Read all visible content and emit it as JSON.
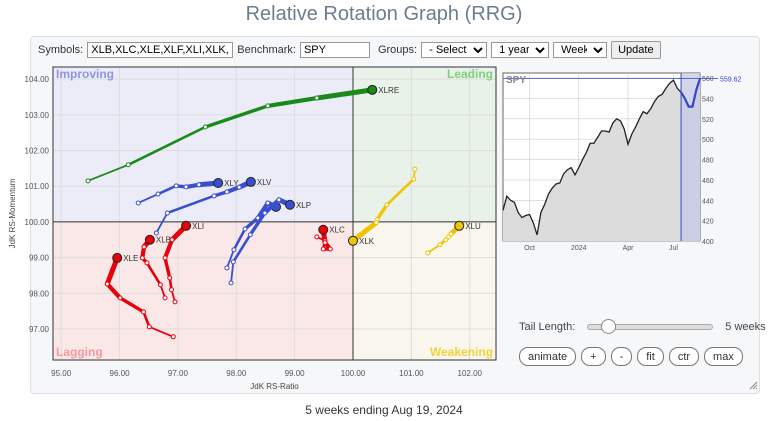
{
  "title": "Relative Rotation Graph (RRG)",
  "toolbar": {
    "symbols_label": "Symbols:",
    "symbols_value": "XLB,XLC,XLE,XLF,XLI,XLK,XLP,XLRE,XLU,XLV,XLY",
    "benchmark_label": "Benchmark:",
    "benchmark_value": "SPY",
    "groups_label": "Groups:",
    "groups_value": "- Select -",
    "period_value": "1 year",
    "interval_value": "Weekly",
    "update_label": "Update"
  },
  "controls": {
    "tail_length_label": "Tail Length:",
    "tail_length_value": "5 weeks",
    "tail_length_fraction": 0.12,
    "buttons": [
      "animate",
      "+",
      "-",
      "fit",
      "ctr",
      "max"
    ]
  },
  "footer": "5 weeks ending Aug 19, 2024",
  "chart_data": [
    {
      "type": "scatter",
      "xlabel": "JdK RS-Ratio",
      "ylabel": "JdK RS-Momentum",
      "xlim": [
        94.86,
        102.45
      ],
      "ylim": [
        96.13,
        104.34
      ],
      "xticks": [
        "95.00",
        "96.00",
        "97.00",
        "98.00",
        "99.00",
        "100.00",
        "101.00",
        "102.00"
      ],
      "yticks": [
        "97.00",
        "98.00",
        "99.00",
        "100.00",
        "101.00",
        "102.00",
        "103.00",
        "104.00"
      ],
      "grid": true,
      "quadrants": {
        "top_left": {
          "label": "Improving",
          "color": "#8e95e6",
          "bg": "#ececf8"
        },
        "top_right": {
          "label": "Leading",
          "color": "#7fcf7f",
          "bg": "#e8f2e8"
        },
        "bottom_left": {
          "label": "Lagging",
          "color": "#f39aa0",
          "bg": "#fae8e8"
        },
        "bottom_right": {
          "label": "Weakening",
          "color": "#f2d23c",
          "bg": "#f9f6ed"
        }
      },
      "series": [
        {
          "name": "XLRE",
          "color": "#1a8a1a",
          "points": [
            [
              95.46,
              101.15
            ],
            [
              96.15,
              101.6
            ],
            [
              97.47,
              102.66
            ],
            [
              98.54,
              103.25
            ],
            [
              99.38,
              103.47
            ],
            [
              100.33,
              103.7
            ]
          ]
        },
        {
          "name": "XLY",
          "color": "#3a4fd0",
          "points": [
            [
              96.32,
              100.53
            ],
            [
              96.66,
              100.78
            ],
            [
              96.97,
              101.01
            ],
            [
              97.14,
              100.98
            ],
            [
              97.36,
              101.04
            ],
            [
              97.69,
              101.09
            ]
          ]
        },
        {
          "name": "XLV",
          "color": "#3a4fd0",
          "points": [
            [
              96.63,
              99.69
            ],
            [
              96.82,
              100.25
            ],
            [
              97.62,
              100.73
            ],
            [
              97.84,
              100.84
            ],
            [
              98.05,
              100.97
            ],
            [
              98.25,
              101.12
            ]
          ]
        },
        {
          "name": "XLF",
          "color": "#3a4fd0",
          "label_hidden": true,
          "points": [
            [
              97.84,
              98.71
            ],
            [
              97.96,
              99.22
            ],
            [
              98.15,
              99.8
            ],
            [
              98.37,
              100.11
            ],
            [
              98.54,
              100.53
            ],
            [
              98.68,
              100.42
            ]
          ]
        },
        {
          "name": "XLP",
          "color": "#3a4fd0",
          "points": [
            [
              97.91,
              98.29
            ],
            [
              97.95,
              98.88
            ],
            [
              98.24,
              99.64
            ],
            [
              98.49,
              100.25
            ],
            [
              98.73,
              100.62
            ],
            [
              98.92,
              100.48
            ]
          ]
        },
        {
          "name": "XLI",
          "color": "#e8000b",
          "points": [
            [
              96.95,
              97.76
            ],
            [
              96.89,
              98.1
            ],
            [
              96.86,
              98.43
            ],
            [
              96.78,
              98.99
            ],
            [
              96.9,
              99.5
            ],
            [
              97.14,
              99.89
            ]
          ]
        },
        {
          "name": "XLB",
          "color": "#e8000b",
          "points": [
            [
              96.78,
              97.87
            ],
            [
              96.7,
              98.24
            ],
            [
              96.47,
              98.85
            ],
            [
              96.39,
              98.99
            ],
            [
              96.42,
              99.3
            ],
            [
              96.52,
              99.5
            ]
          ]
        },
        {
          "name": "XLE",
          "color": "#e8000b",
          "points": [
            [
              96.92,
              96.78
            ],
            [
              96.51,
              97.06
            ],
            [
              96.41,
              97.48
            ],
            [
              96.01,
              97.87
            ],
            [
              95.79,
              98.26
            ],
            [
              95.96,
              98.99
            ]
          ]
        },
        {
          "name": "XLC",
          "color": "#e8000b",
          "points": [
            [
              99.38,
              99.58
            ],
            [
              99.52,
              99.47
            ],
            [
              99.49,
              99.24
            ],
            [
              99.61,
              99.24
            ],
            [
              99.52,
              99.42
            ],
            [
              99.49,
              99.78
            ]
          ]
        },
        {
          "name": "XLK",
          "color": "#f0c400",
          "points": [
            [
              101.06,
              101.48
            ],
            [
              101.04,
              101.2
            ],
            [
              100.58,
              100.48
            ],
            [
              100.41,
              100.06
            ],
            [
              100.4,
              99.98
            ],
            [
              100.0,
              99.47
            ]
          ]
        },
        {
          "name": "XLU",
          "color": "#f0c400",
          "points": [
            [
              101.28,
              99.13
            ],
            [
              101.49,
              99.36
            ],
            [
              101.59,
              99.5
            ],
            [
              101.64,
              99.58
            ],
            [
              101.68,
              99.66
            ],
            [
              101.82,
              99.89
            ]
          ]
        }
      ]
    },
    {
      "type": "area",
      "title": "SPY",
      "xticks": [
        "Oct",
        "2024",
        "Apr",
        "Jul"
      ],
      "yticks": [
        "400",
        "420",
        "440",
        "460",
        "480",
        "500",
        "520",
        "540",
        "560"
      ],
      "ylim": [
        400,
        565
      ],
      "last_value": "559.62",
      "highlight_weeks": 5,
      "values": [
        430,
        444,
        440,
        438,
        428,
        423,
        425,
        426,
        418,
        406,
        428,
        436,
        446,
        452,
        456,
        457,
        466,
        470,
        472,
        465,
        472,
        480,
        487,
        496,
        496,
        502,
        508,
        508,
        507,
        516,
        520,
        518,
        510,
        495,
        505,
        512,
        520,
        527,
        525,
        530,
        537,
        542,
        544,
        550,
        555,
        558,
        550,
        546,
        540,
        532,
        532,
        548,
        559.62
      ]
    }
  ]
}
